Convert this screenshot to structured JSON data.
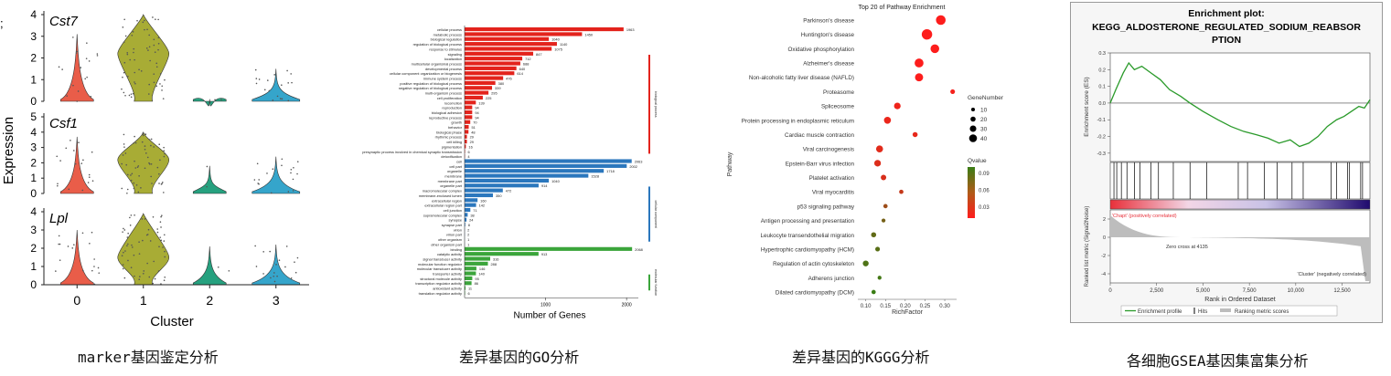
{
  "captions": {
    "violin": "marker基因鉴定分析",
    "go": "差异基因的GO分析",
    "kegg": "差异基因的KGGG分析",
    "gsea": "各细胞GSEA基因集富集分析"
  },
  "chart_data": [
    {
      "type": "violin",
      "ylabel": "Expression",
      "xlabel": "Cluster",
      "ylim": [
        0,
        4
      ],
      "yticks": [
        0,
        1,
        2,
        3,
        4
      ],
      "categories": [
        "0",
        "1",
        "2",
        "3"
      ],
      "category_colors": [
        "#e8543f",
        "#a3a82a",
        "#1a9c78",
        "#2aa0c8"
      ],
      "genes": [
        {
          "name": "Cst7",
          "ylim": [
            0,
            4
          ],
          "yticks": [
            0,
            1,
            2,
            3,
            4
          ],
          "medians": [
            0.05,
            2.2,
            0,
            0.1
          ],
          "max": [
            3.1,
            4.0,
            0.1,
            1.5
          ]
        },
        {
          "name": "Csf1",
          "ylim": [
            0,
            5
          ],
          "yticks": [
            0,
            1,
            2,
            3,
            4,
            5
          ],
          "medians": [
            0.1,
            2.2,
            0,
            0.5
          ],
          "max": [
            3.7,
            4.0,
            1.8,
            2.4
          ]
        },
        {
          "name": "Lpl",
          "ylim": [
            0,
            4
          ],
          "yticks": [
            0,
            1,
            2,
            3,
            4
          ],
          "medians": [
            0.05,
            1.5,
            0,
            0.2
          ],
          "max": [
            3.0,
            3.9,
            2.1,
            2.2
          ]
        }
      ]
    },
    {
      "type": "bar",
      "orientation": "horizontal",
      "xlabel": "Number of Genes",
      "xticks": [
        1000,
        2000
      ],
      "xlim": [
        0,
        2100
      ],
      "groups": [
        {
          "name": "biological process",
          "color": "#e3231c",
          "items": [
            {
              "label": "cellular process",
              "value": 1963
            },
            {
              "label": "metabolic process",
              "value": 1450
            },
            {
              "label": "biological regulation",
              "value": 1040
            },
            {
              "label": "regulation of biological process",
              "value": 1140
            },
            {
              "label": "response to stimulus",
              "value": 1075
            },
            {
              "label": "signaling",
              "value": 847
            },
            {
              "label": "localization",
              "value": 712
            },
            {
              "label": "multicellular organismal process",
              "value": 688
            },
            {
              "label": "developmental process",
              "value": 640
            },
            {
              "label": "cellular component organization or biogenesis",
              "value": 614
            },
            {
              "label": "immune system process",
              "value": 476
            },
            {
              "label": "positive regulation of biological process",
              "value": 380
            },
            {
              "label": "negative regulation of biological process",
              "value": 339
            },
            {
              "label": "multi-organism process",
              "value": 295
            },
            {
              "label": "cell proliferation",
              "value": 225
            },
            {
              "label": "locomotion",
              "value": 139
            },
            {
              "label": "reproduction",
              "value": 94
            },
            {
              "label": "biological adhesion",
              "value": 94
            },
            {
              "label": "reproductive process",
              "value": 94
            },
            {
              "label": "growth",
              "value": 70
            },
            {
              "label": "behavior",
              "value": 51
            },
            {
              "label": "biological phase",
              "value": 48
            },
            {
              "label": "rhythmic process",
              "value": 29
            },
            {
              "label": "cell killing",
              "value": 29
            },
            {
              "label": "pigmentation",
              "value": 16
            },
            {
              "label": "presynaptic process involved in chemical synaptic transmission",
              "value": 6
            },
            {
              "label": "detoxification",
              "value": 4
            }
          ]
        },
        {
          "name": "cellular component",
          "color": "#2b77bd",
          "items": [
            {
              "label": "cell",
              "value": 2063
            },
            {
              "label": "cell part",
              "value": 2002
            },
            {
              "label": "organelle",
              "value": 1718
            },
            {
              "label": "membrane",
              "value": 1528
            },
            {
              "label": "membrane part",
              "value": 1040
            },
            {
              "label": "organelle part",
              "value": 914
            },
            {
              "label": "macromolecular complex",
              "value": 472
            },
            {
              "label": "membrane-enclosed lumen",
              "value": 350
            },
            {
              "label": "extracellular region",
              "value": 160
            },
            {
              "label": "extracellular region part",
              "value": 142
            },
            {
              "label": "cell junction",
              "value": 71
            },
            {
              "label": "supramolecular complex",
              "value": 38
            },
            {
              "label": "synapse",
              "value": 24
            },
            {
              "label": "synapse part",
              "value": 8
            },
            {
              "label": "virion",
              "value": 2
            },
            {
              "label": "virion part",
              "value": 2
            },
            {
              "label": "other organism",
              "value": 1
            },
            {
              "label": "other organism part",
              "value": 1
            }
          ]
        },
        {
          "name": "molecular function",
          "color": "#3ba53b",
          "items": [
            {
              "label": "binding",
              "value": 2068
            },
            {
              "label": "catalytic activity",
              "value": 913
            },
            {
              "label": "signal transducer activity",
              "value": 316
            },
            {
              "label": "molecular function regulator",
              "value": 288
            },
            {
              "label": "molecular transducer activity",
              "value": 146
            },
            {
              "label": "transporter activity",
              "value": 140
            },
            {
              "label": "structural molecule activity",
              "value": 95
            },
            {
              "label": "transcription regulator activity",
              "value": 86
            },
            {
              "label": "antioxidant activity",
              "value": 11
            },
            {
              "label": "translation regulator activity",
              "value": 6
            }
          ]
        }
      ]
    },
    {
      "type": "scatter",
      "title": "Top 20 of Pathway Enrichment",
      "xlabel": "RichFactor",
      "ylabel": "Pathway",
      "xlim": [
        0.08,
        0.33
      ],
      "xticks": [
        0.1,
        0.15,
        0.2,
        0.25,
        0.3
      ],
      "xtick_labels": [
        "0.10",
        "0.15",
        "0.20",
        "0.25",
        "0.30"
      ],
      "size_legend": {
        "title": "GeneNumber",
        "values": [
          10,
          20,
          30,
          40
        ]
      },
      "color_legend": {
        "title": "Qvalue",
        "values": [
          "0.09",
          "0.06",
          "0.03"
        ],
        "colors": [
          "#3a7d15",
          "#b05b18",
          "#ff1c1c"
        ]
      },
      "points": [
        {
          "pathway": "Parkinson's disease",
          "x": 0.29,
          "size": 38,
          "q": 0.001
        },
        {
          "pathway": "Huntington's disease",
          "x": 0.255,
          "size": 42,
          "q": 0.001
        },
        {
          "pathway": "Oxidative phosphorylation",
          "x": 0.275,
          "size": 33,
          "q": 0.001
        },
        {
          "pathway": "Alzheimer's disease",
          "x": 0.235,
          "size": 34,
          "q": 0.001
        },
        {
          "pathway": "Non-alcoholic fatty liver disease (NAFLD)",
          "x": 0.235,
          "size": 30,
          "q": 0.001
        },
        {
          "pathway": "Proteasome",
          "x": 0.32,
          "size": 12,
          "q": 0.005
        },
        {
          "pathway": "Spliceosome",
          "x": 0.18,
          "size": 22,
          "q": 0.008
        },
        {
          "pathway": "Protein processing in endoplasmic reticulum",
          "x": 0.155,
          "size": 24,
          "q": 0.01
        },
        {
          "pathway": "Cardiac muscle contraction",
          "x": 0.225,
          "size": 14,
          "q": 0.012
        },
        {
          "pathway": "Viral carcinogenesis",
          "x": 0.135,
          "size": 24,
          "q": 0.015
        },
        {
          "pathway": "Epstein-Barr virus infection",
          "x": 0.13,
          "size": 22,
          "q": 0.018
        },
        {
          "pathway": "Platelet activation",
          "x": 0.145,
          "size": 16,
          "q": 0.02
        },
        {
          "pathway": "Viral myocarditis",
          "x": 0.19,
          "size": 10,
          "q": 0.03
        },
        {
          "pathway": "p53 signaling pathway",
          "x": 0.15,
          "size": 10,
          "q": 0.05
        },
        {
          "pathway": "Antigen processing and presentation",
          "x": 0.145,
          "size": 8,
          "q": 0.07
        },
        {
          "pathway": "Leukocyte transendothelial migration",
          "x": 0.12,
          "size": 14,
          "q": 0.08
        },
        {
          "pathway": "Hypertrophic cardiomyopathy (HCM)",
          "x": 0.13,
          "size": 12,
          "q": 0.085
        },
        {
          "pathway": "Regulation of actin cytoskeleton",
          "x": 0.1,
          "size": 18,
          "q": 0.09
        },
        {
          "pathway": "Adherens junction",
          "x": 0.135,
          "size": 8,
          "q": 0.095
        },
        {
          "pathway": "Dilated cardiomyopathy (DCM)",
          "x": 0.12,
          "size": 10,
          "q": 0.1
        }
      ]
    },
    {
      "type": "line",
      "title_line1": "Enrichment plot:",
      "title_line2": "KEGG_ALDOSTERONE_REGULATED_SODIUM_REABSOR",
      "title_line3": "PTION",
      "ylabel_top": "Enrichment score (ES)",
      "ylabel_bottom": "Ranked list metric (Signal2Noise)",
      "xlabel": "Rank in Ordered Dataset",
      "xlim": [
        0,
        14000
      ],
      "xticks": [
        0,
        2500,
        5000,
        7500,
        10000,
        12500
      ],
      "xtick_labels": [
        "0",
        "2,500",
        "5,000",
        "7,500",
        "10,000",
        "12,500"
      ],
      "es_ylim": [
        -0.35,
        0.3
      ],
      "es_yticks": [
        0.3,
        0.2,
        0.1,
        0.0,
        -0.1,
        -0.2,
        -0.3
      ],
      "es_ytick_labels": [
        "0.3",
        "0.2",
        "0.1",
        "0.0",
        "-0.1",
        "-0.2",
        "-0.3"
      ],
      "es_curve": [
        [
          0,
          0
        ],
        [
          300,
          0.08
        ],
        [
          700,
          0.18
        ],
        [
          1000,
          0.24
        ],
        [
          1300,
          0.2
        ],
        [
          1700,
          0.22
        ],
        [
          2200,
          0.18
        ],
        [
          2700,
          0.14
        ],
        [
          3200,
          0.08
        ],
        [
          3800,
          0.04
        ],
        [
          4300,
          0.0
        ],
        [
          5000,
          -0.05
        ],
        [
          5800,
          -0.1
        ],
        [
          6500,
          -0.14
        ],
        [
          7200,
          -0.17
        ],
        [
          7900,
          -0.19
        ],
        [
          8500,
          -0.21
        ],
        [
          9100,
          -0.24
        ],
        [
          9700,
          -0.22
        ],
        [
          10200,
          -0.26
        ],
        [
          10700,
          -0.24
        ],
        [
          11200,
          -0.2
        ],
        [
          11700,
          -0.14
        ],
        [
          12200,
          -0.1
        ],
        [
          12600,
          -0.08
        ],
        [
          13000,
          -0.05
        ],
        [
          13400,
          -0.02
        ],
        [
          13700,
          -0.03
        ],
        [
          14000,
          0.02
        ]
      ],
      "hits": [
        200,
        350,
        600,
        900,
        1300,
        1600,
        2200,
        2600,
        3400,
        4300,
        5200,
        6900,
        7400,
        8300,
        9000,
        9800,
        10400,
        11900,
        12200,
        12800,
        12900,
        13500,
        13600
      ],
      "metric_ylim": [
        -5,
        3
      ],
      "metric_yticks": [
        2,
        0,
        -2,
        -4
      ],
      "metric_ytick_labels": [
        "2",
        "0",
        "-2",
        "-4"
      ],
      "zero_cross_label": "Zero cross at 4135",
      "zero_cross": 4135,
      "pos_label": "'Chapt' (positively correlated)",
      "neg_label": "'Cluster' (negatively correlated)",
      "legend": [
        "Enrichment profile",
        "Hits",
        "Ranking metric scores"
      ],
      "colors": {
        "curve": "#2a9a2a",
        "pos": "#e8303a",
        "neg": "#1f0a6e"
      }
    }
  ]
}
